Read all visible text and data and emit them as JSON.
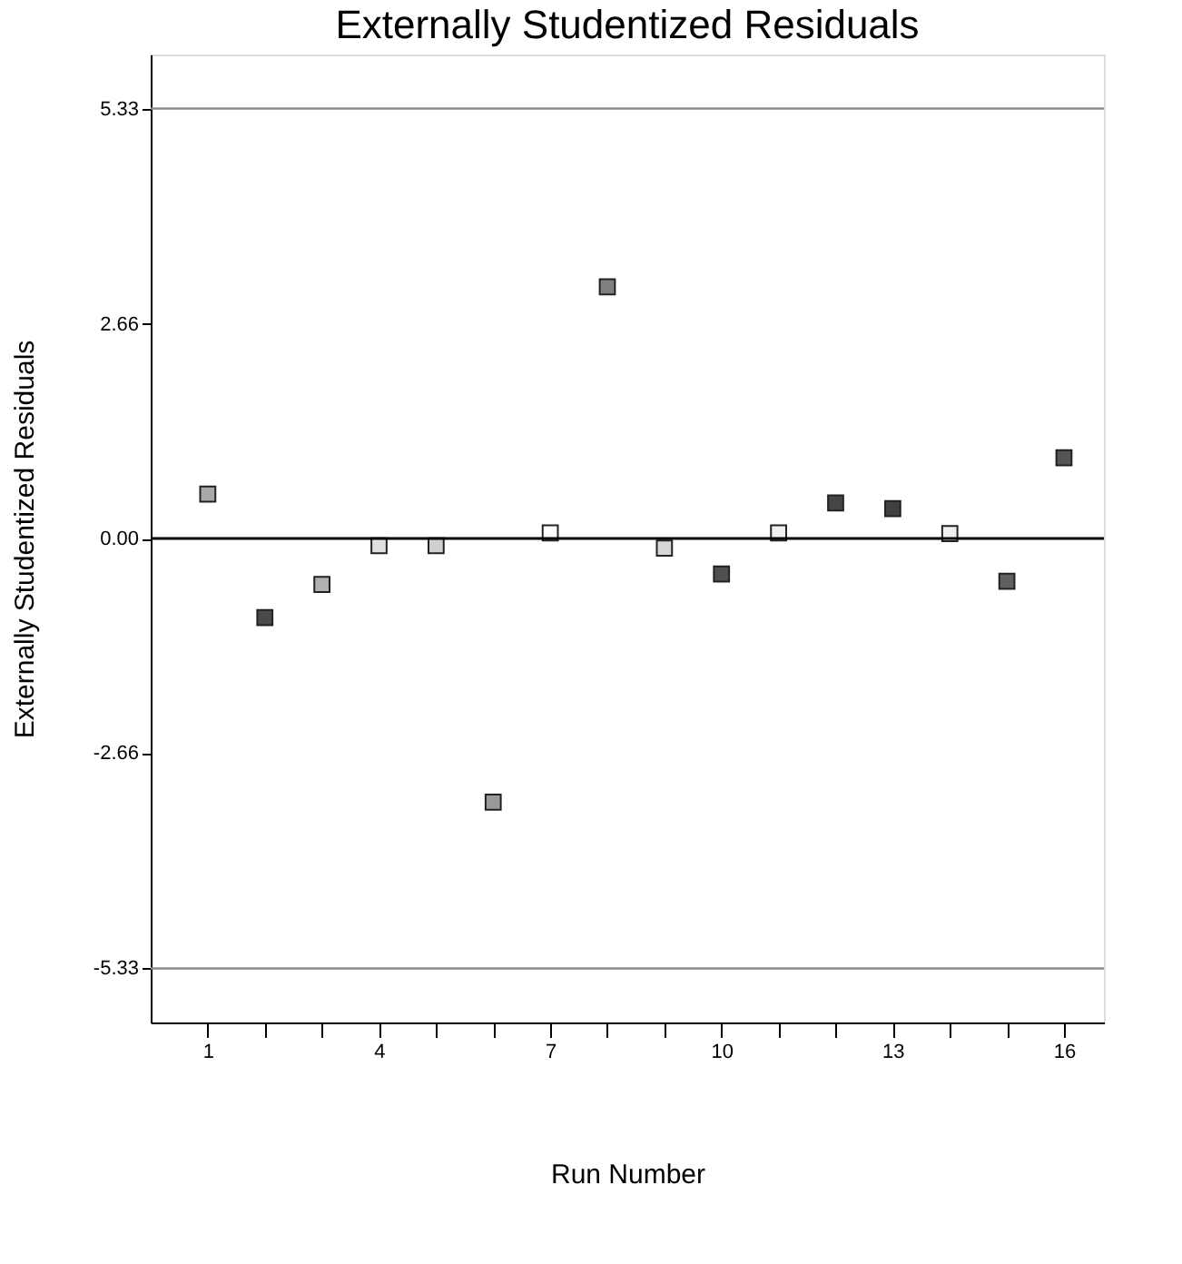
{
  "chart_data": {
    "type": "scatter",
    "title": "Externally Studentized Residuals",
    "xlabel": "Run Number",
    "ylabel": "Externally Studentized Residuals",
    "x": [
      1,
      2,
      3,
      4,
      5,
      6,
      7,
      8,
      9,
      10,
      11,
      12,
      13,
      14,
      15,
      16
    ],
    "series": [
      {
        "values": [
          0.55,
          -0.98,
          -0.57,
          -0.09,
          -0.09,
          -3.27,
          0.07,
          3.12,
          -0.12,
          -0.44,
          0.07,
          0.44,
          0.37,
          0.06,
          -0.53,
          1.0
        ],
        "colors": [
          "#a8a8a8",
          "#4a4a4a",
          "#b0b0b0",
          "#e0e0e0",
          "#d0d0d0",
          "#9a9a9a",
          "#ffffff",
          "#808080",
          "#d8d8d8",
          "#505050",
          "#f0f0f0",
          "#454545",
          "#404040",
          "#f0f0f0",
          "#606060",
          "#555555"
        ]
      }
    ],
    "marker": "square",
    "xlim": [
      0,
      16.7
    ],
    "xticks": [
      1,
      {
        "value": 2,
        "label": null
      },
      {
        "value": 3,
        "label": null
      },
      4,
      {
        "value": 5,
        "label": null
      },
      {
        "value": 6,
        "label": null
      },
      7,
      {
        "value": 8,
        "label": null
      },
      {
        "value": 9,
        "label": null
      },
      10,
      {
        "value": 11,
        "label": null
      },
      {
        "value": 12,
        "label": null
      },
      13,
      {
        "value": 14,
        "label": null
      },
      {
        "value": 15,
        "label": null
      },
      16
    ],
    "ylim": [
      -6,
      6
    ],
    "yticks": [
      {
        "value": -5.33,
        "label": "-5.33"
      },
      {
        "value": -2.66,
        "label": "-2.66"
      },
      {
        "value": 0,
        "label": "0.00"
      },
      2.66,
      5.33
    ],
    "ref_lines": [
      {
        "axis": "y",
        "value": 5.33,
        "color": "#8a8a8a"
      },
      {
        "axis": "y",
        "value": -5.33,
        "color": "#8a8a8a"
      },
      {
        "axis": "y",
        "value": 0,
        "color": "#000000"
      }
    ],
    "grid": false
  }
}
